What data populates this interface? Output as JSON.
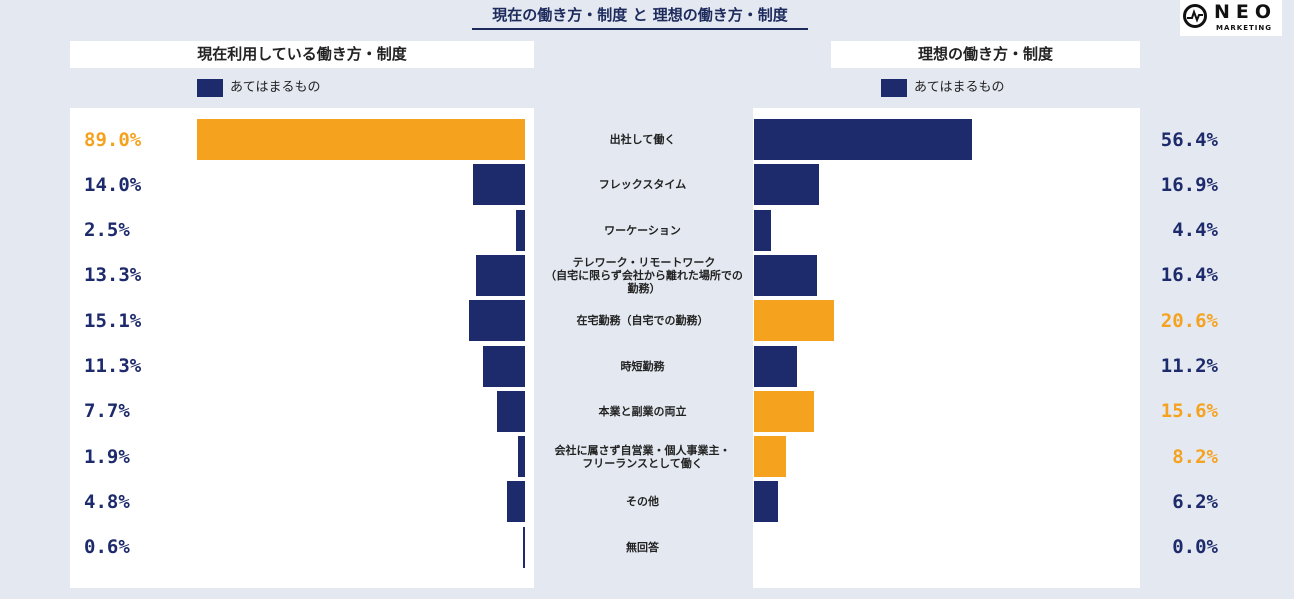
{
  "title": "現在の働き方・制度 と 理想の働き方・制度",
  "logo": {
    "text": "NEO",
    "sub": "MARKETING"
  },
  "colors": {
    "navy": "#1d2a6b",
    "orange": "#f5a21f"
  },
  "left_panel": {
    "heading": "現在利用している働き方・制度",
    "legend": "あてはまるもの"
  },
  "right_panel": {
    "heading": "理想の働き方・制度",
    "legend": "あてはまるもの"
  },
  "chart_data": {
    "type": "bar",
    "categories": [
      "出社して働く",
      "フレックスタイム",
      "ワーケーション",
      "テレワーク・リモートワーク\n（自宅に限らず会社から離れた場所での勤務）",
      "在宅勤務（自宅での勤務）",
      "時短勤務",
      "本業と副業の両立",
      "会社に属さず自営業・個人事業主・\nフリーランスとして働く",
      "その他",
      "無回答"
    ],
    "series": [
      {
        "name": "現在利用している働き方・制度",
        "values": [
          89.0,
          14.0,
          2.5,
          13.3,
          15.1,
          11.3,
          7.7,
          1.9,
          4.8,
          0.6
        ],
        "labels": [
          "89.0%",
          "14.0%",
          "2.5%",
          "13.3%",
          "15.1%",
          "11.3%",
          "7.7%",
          "1.9%",
          "4.8%",
          "0.6%"
        ],
        "highlight": [
          true,
          false,
          false,
          false,
          false,
          false,
          false,
          false,
          false,
          false
        ]
      },
      {
        "name": "理想の働き方・制度",
        "values": [
          56.4,
          16.9,
          4.4,
          16.4,
          20.6,
          11.2,
          15.6,
          8.2,
          6.2,
          0.0
        ],
        "labels": [
          "56.4%",
          "16.9%",
          "4.4%",
          "16.4%",
          "20.6%",
          "11.2%",
          "15.6%",
          "8.2%",
          "6.2%",
          "0.0%"
        ],
        "highlight": [
          false,
          false,
          false,
          false,
          true,
          false,
          true,
          true,
          false,
          false
        ]
      }
    ],
    "legend": "あてはまるもの"
  }
}
